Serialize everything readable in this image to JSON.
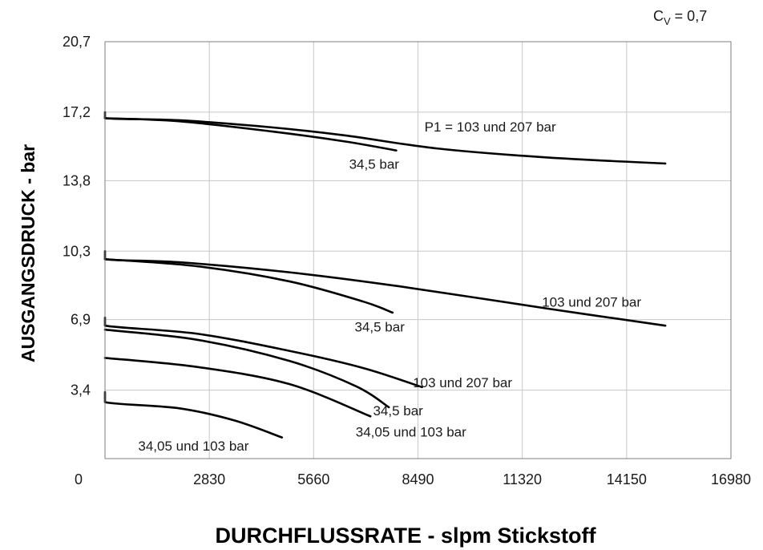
{
  "chart_data": {
    "type": "line",
    "cv_label": {
      "prefix": "C",
      "sub": "V",
      "suffix": " = 0,7"
    },
    "xlabel": "DURCHFLUSSRATE - slpm Stickstoff",
    "ylabel": "AUSGANGSDRUCK - bar",
    "xlim": [
      0,
      16980
    ],
    "ylim": [
      0,
      20.7
    ],
    "grid": true,
    "x_ticks": [
      {
        "v": 0,
        "label": "0"
      },
      {
        "v": 2830,
        "label": "2830"
      },
      {
        "v": 5660,
        "label": "5660"
      },
      {
        "v": 8490,
        "label": "8490"
      },
      {
        "v": 11320,
        "label": "11320"
      },
      {
        "v": 14150,
        "label": "14150"
      },
      {
        "v": 16980,
        "label": "16980"
      }
    ],
    "y_ticks": [
      {
        "v": 3.4,
        "label": "3,4"
      },
      {
        "v": 6.9,
        "label": "6,9"
      },
      {
        "v": 10.3,
        "label": "10,3"
      },
      {
        "v": 13.8,
        "label": "13,8"
      },
      {
        "v": 17.2,
        "label": "17,2"
      },
      {
        "v": 20.7,
        "label": "20,7"
      }
    ],
    "series": [
      {
        "points": [
          [
            0,
            17.2
          ],
          [
            0,
            16.9
          ],
          [
            2000,
            16.8
          ],
          [
            4500,
            16.45
          ],
          [
            6500,
            16.05
          ],
          [
            9000,
            15.4
          ],
          [
            12000,
            14.95
          ],
          [
            15200,
            14.65
          ]
        ]
      },
      {
        "points": [
          [
            0,
            16.9
          ],
          [
            2000,
            16.75
          ],
          [
            4500,
            16.25
          ],
          [
            6500,
            15.75
          ],
          [
            7900,
            15.3
          ]
        ]
      },
      {
        "points": [
          [
            0,
            10.3
          ],
          [
            0,
            9.9
          ],
          [
            2000,
            9.75
          ],
          [
            5000,
            9.25
          ],
          [
            8000,
            8.55
          ],
          [
            12000,
            7.45
          ],
          [
            15200,
            6.6
          ]
        ]
      },
      {
        "points": [
          [
            0,
            9.9
          ],
          [
            2500,
            9.55
          ],
          [
            5000,
            8.8
          ],
          [
            7000,
            7.8
          ],
          [
            7800,
            7.25
          ]
        ]
      },
      {
        "points": [
          [
            0,
            7.0
          ],
          [
            0,
            6.6
          ],
          [
            2500,
            6.2
          ],
          [
            5000,
            5.35
          ],
          [
            7000,
            4.5
          ],
          [
            8600,
            3.55
          ]
        ]
      },
      {
        "points": [
          [
            0,
            6.4
          ],
          [
            2500,
            5.9
          ],
          [
            5000,
            4.85
          ],
          [
            6800,
            3.6
          ],
          [
            7700,
            2.55
          ]
        ]
      },
      {
        "points": [
          [
            0,
            5.0
          ],
          [
            2500,
            4.55
          ],
          [
            5000,
            3.7
          ],
          [
            7200,
            2.1
          ]
        ]
      },
      {
        "points": [
          [
            0,
            3.3
          ],
          [
            0,
            2.8
          ],
          [
            2000,
            2.5
          ],
          [
            3500,
            1.9
          ],
          [
            4800,
            1.05
          ]
        ]
      }
    ],
    "annotations": [
      {
        "text": "P1 = 103 und 207 bar",
        "x": 10450,
        "y": 16.25
      },
      {
        "text": "34,5 bar",
        "x": 7300,
        "y": 14.4
      },
      {
        "text": "103 und 207 bar",
        "x": 13200,
        "y": 7.55
      },
      {
        "text": "34,5 bar",
        "x": 7450,
        "y": 6.3
      },
      {
        "text": "103 und 207 bar",
        "x": 9700,
        "y": 3.55
      },
      {
        "text": "34,5 bar",
        "x": 7950,
        "y": 2.15
      },
      {
        "text": "34,05 und 103 bar",
        "x": 8300,
        "y": 1.1
      },
      {
        "text": "34,05 und 103 bar",
        "x": 2400,
        "y": 0.4
      }
    ]
  }
}
